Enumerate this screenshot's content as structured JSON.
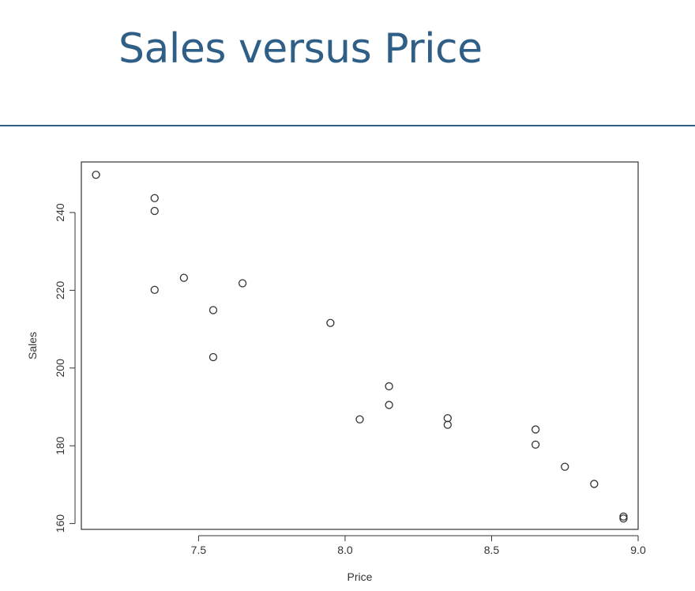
{
  "slide": {
    "title": "Sales versus Price"
  },
  "colors": {
    "title": "#2f5f86",
    "rule": "#2f5f86",
    "points": "#333333",
    "axes": "#333333"
  },
  "chart_data": {
    "type": "scatter",
    "title": "",
    "xlabel": "Price",
    "ylabel": "Sales",
    "xlim": [
      7.1,
      9.0
    ],
    "ylim": [
      158.5,
      253
    ],
    "xticks": [
      7.5,
      8.0,
      8.5,
      9.0
    ],
    "xtick_labels": [
      "7.5",
      "8.0",
      "8.5",
      "9.0"
    ],
    "yticks": [
      160,
      180,
      200,
      220,
      240
    ],
    "ytick_labels": [
      "160",
      "180",
      "200",
      "220",
      "240"
    ],
    "grid": false,
    "legend": "none",
    "marker": "open-circle",
    "points": [
      {
        "x": 7.15,
        "y": 249.7
      },
      {
        "x": 7.35,
        "y": 243.7
      },
      {
        "x": 7.35,
        "y": 240.4
      },
      {
        "x": 7.35,
        "y": 220.1
      },
      {
        "x": 7.45,
        "y": 223.2
      },
      {
        "x": 7.55,
        "y": 214.9
      },
      {
        "x": 7.55,
        "y": 202.8
      },
      {
        "x": 7.65,
        "y": 221.8
      },
      {
        "x": 7.95,
        "y": 211.6
      },
      {
        "x": 8.05,
        "y": 186.8
      },
      {
        "x": 8.15,
        "y": 195.3
      },
      {
        "x": 8.15,
        "y": 190.5
      },
      {
        "x": 8.35,
        "y": 187.1
      },
      {
        "x": 8.35,
        "y": 185.4
      },
      {
        "x": 8.65,
        "y": 184.2
      },
      {
        "x": 8.65,
        "y": 180.3
      },
      {
        "x": 8.75,
        "y": 174.6
      },
      {
        "x": 8.85,
        "y": 170.2
      },
      {
        "x": 8.95,
        "y": 161.8
      },
      {
        "x": 8.95,
        "y": 161.3
      }
    ]
  }
}
